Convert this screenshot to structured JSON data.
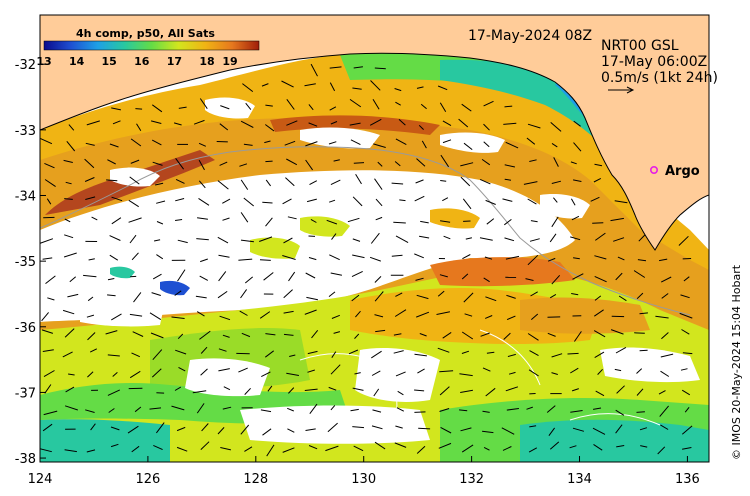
{
  "map": {
    "colorbar_title": "4h comp, p50, All Sats",
    "colorbar_ticks": [
      "13",
      "14",
      "15",
      "16",
      "17",
      "18",
      "19"
    ],
    "colorbar_range": [
      13,
      19.6
    ],
    "colorbar_colors": [
      "#0a0a8c",
      "#1e50d2",
      "#1ea0e6",
      "#28c8a0",
      "#64dc46",
      "#d2e61e",
      "#f0b414",
      "#e6781e",
      "#a01e0a"
    ],
    "date_label": "17-May-2024 08Z",
    "current_source": "NRT00 GSL",
    "current_time": "17-May 06:00Z",
    "scale_label": "0.5m/s (1kt 24h)",
    "argo_label": "Argo",
    "argo_color": "#e61ee6",
    "credit": "© IMOS 20-May-2024 15:04 Hobart",
    "land_color": "#ffcc99",
    "lon_ticks": [
      "124",
      "126",
      "128",
      "130",
      "132",
      "134",
      "136"
    ],
    "lat_ticks": [
      "-32",
      "-33",
      "-34",
      "-35",
      "-36",
      "-37",
      "-38"
    ],
    "lon_range": [
      124,
      136.4
    ],
    "lat_range": [
      -38.06,
      -31.25
    ]
  }
}
